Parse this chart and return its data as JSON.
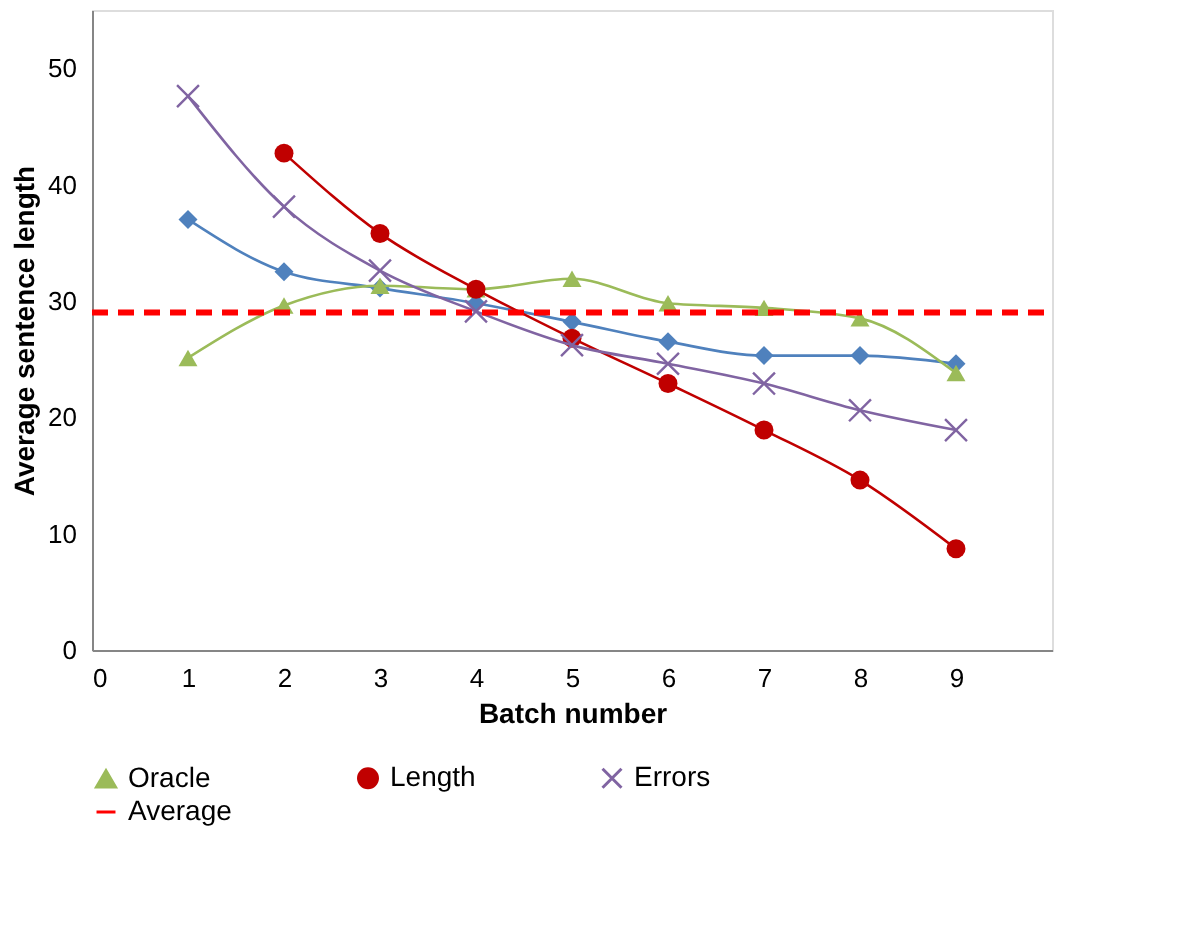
{
  "chart_data": {
    "type": "line",
    "xlabel": "Batch number",
    "ylabel": "Average sentence length",
    "x": [
      1,
      2,
      3,
      4,
      5,
      6,
      7,
      8,
      9
    ],
    "series": [
      {
        "color": "#4f81bd",
        "marker": "diamond",
        "values": [
          37.0,
          32.5,
          31.1,
          29.8,
          28.2,
          26.5,
          25.3,
          25.3,
          24.6
        ]
      },
      {
        "name": "Oracle",
        "color": "#9bbb59",
        "marker": "triangle",
        "values": [
          25.1,
          29.6,
          31.3,
          31.0,
          31.9,
          29.8,
          29.4,
          28.5,
          23.8
        ]
      },
      {
        "name": "Length",
        "color": "#c00000",
        "marker": "circle",
        "values": [
          null,
          42.7,
          35.8,
          31.0,
          26.8,
          22.9,
          18.9,
          14.6,
          8.7
        ]
      },
      {
        "name": "Errors",
        "color": "#8064a2",
        "marker": "cross",
        "values": [
          47.6,
          38.1,
          32.6,
          29.1,
          26.2,
          24.6,
          22.9,
          20.6,
          18.9
        ]
      },
      {
        "name": "Average",
        "color": "#ff0000",
        "marker": "none",
        "line_style": "dashed",
        "x": [
          0,
          10
        ],
        "values": [
          29.0,
          29.0
        ]
      }
    ],
    "xlim": [
      0,
      10
    ],
    "ylim": [
      0,
      55
    ],
    "xticks": [
      0,
      1,
      2,
      3,
      4,
      5,
      6,
      7,
      8,
      9
    ],
    "yticks": [
      0,
      10,
      20,
      30,
      40,
      50
    ],
    "grid": false,
    "legend": "bottom"
  }
}
